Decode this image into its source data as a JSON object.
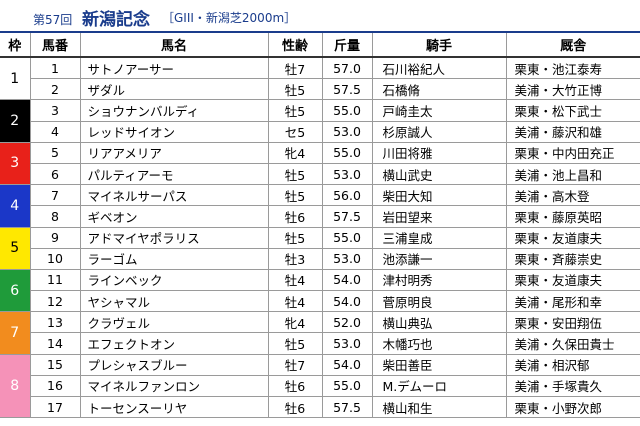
{
  "header": {
    "edition": "第57回",
    "race_name": "新潟記念",
    "race_info": "［GIII・新潟芝2000m］"
  },
  "columns": [
    "枠",
    "馬番",
    "馬名",
    "性齢",
    "斤量",
    "騎手",
    "厩舎"
  ],
  "colors": {
    "header_blue": "#1a3c8c",
    "waku": [
      "#ffffff",
      "#000000",
      "#e8211a",
      "#1b37c8",
      "#ffe800",
      "#1f9b3a",
      "#f28c1e",
      "#f592b8"
    ],
    "waku_text": [
      "#000000",
      "#ffffff",
      "#ffffff",
      "#ffffff",
      "#000000",
      "#ffffff",
      "#ffffff",
      "#ffffff"
    ]
  },
  "waku_groups": [
    {
      "waku": "1",
      "count": 2
    },
    {
      "waku": "2",
      "count": 2
    },
    {
      "waku": "3",
      "count": 2
    },
    {
      "waku": "4",
      "count": 2
    },
    {
      "waku": "5",
      "count": 2
    },
    {
      "waku": "6",
      "count": 2
    },
    {
      "waku": "7",
      "count": 2
    },
    {
      "waku": "8",
      "count": 3
    }
  ],
  "entries": [
    {
      "num": "1",
      "horse": "サトノアーサー",
      "sa": "牡7",
      "weight": "57.0",
      "jockey": "石川裕紀人",
      "trainer": "栗東・池江泰寿"
    },
    {
      "num": "2",
      "horse": "ザダル",
      "sa": "牡5",
      "weight": "57.5",
      "jockey": "石橋脩",
      "trainer": "美浦・大竹正博"
    },
    {
      "num": "3",
      "horse": "ショウナンバルディ",
      "sa": "牡5",
      "weight": "55.0",
      "jockey": "戸崎圭太",
      "trainer": "栗東・松下武士"
    },
    {
      "num": "4",
      "horse": "レッドサイオン",
      "sa": "セ5",
      "weight": "53.0",
      "jockey": "杉原誠人",
      "trainer": "美浦・藤沢和雄"
    },
    {
      "num": "5",
      "horse": "リアアメリア",
      "sa": "牝4",
      "weight": "55.0",
      "jockey": "川田将雅",
      "trainer": "栗東・中内田充正"
    },
    {
      "num": "6",
      "horse": "パルティアーモ",
      "sa": "牡5",
      "weight": "53.0",
      "jockey": "横山武史",
      "trainer": "美浦・池上昌和"
    },
    {
      "num": "7",
      "horse": "マイネルサーパス",
      "sa": "牡5",
      "weight": "56.0",
      "jockey": "柴田大知",
      "trainer": "美浦・高木登"
    },
    {
      "num": "8",
      "horse": "ギベオン",
      "sa": "牡6",
      "weight": "57.5",
      "jockey": "岩田望来",
      "trainer": "栗東・藤原英昭"
    },
    {
      "num": "9",
      "horse": "アドマイヤポラリス",
      "sa": "牡5",
      "weight": "55.0",
      "jockey": "三浦皇成",
      "trainer": "栗東・友道康夫"
    },
    {
      "num": "10",
      "horse": "ラーゴム",
      "sa": "牡3",
      "weight": "53.0",
      "jockey": "池添謙一",
      "trainer": "栗東・斉藤崇史"
    },
    {
      "num": "11",
      "horse": "ラインベック",
      "sa": "牡4",
      "weight": "54.0",
      "jockey": "津村明秀",
      "trainer": "栗東・友道康夫"
    },
    {
      "num": "12",
      "horse": "ヤシャマル",
      "sa": "牡4",
      "weight": "54.0",
      "jockey": "菅原明良",
      "trainer": "美浦・尾形和幸"
    },
    {
      "num": "13",
      "horse": "クラヴェル",
      "sa": "牝4",
      "weight": "52.0",
      "jockey": "横山典弘",
      "trainer": "栗東・安田翔伍"
    },
    {
      "num": "14",
      "horse": "エフェクトオン",
      "sa": "牡5",
      "weight": "53.0",
      "jockey": "木幡巧也",
      "trainer": "美浦・久保田貴士"
    },
    {
      "num": "15",
      "horse": "プレシャスブルー",
      "sa": "牡7",
      "weight": "54.0",
      "jockey": "柴田善臣",
      "trainer": "美浦・相沢郁"
    },
    {
      "num": "16",
      "horse": "マイネルファンロン",
      "sa": "牡6",
      "weight": "55.0",
      "jockey": "M.デムーロ",
      "trainer": "美浦・手塚貴久"
    },
    {
      "num": "17",
      "horse": "トーセンスーリヤ",
      "sa": "牡6",
      "weight": "57.5",
      "jockey": "横山和生",
      "trainer": "栗東・小野次郎"
    }
  ]
}
